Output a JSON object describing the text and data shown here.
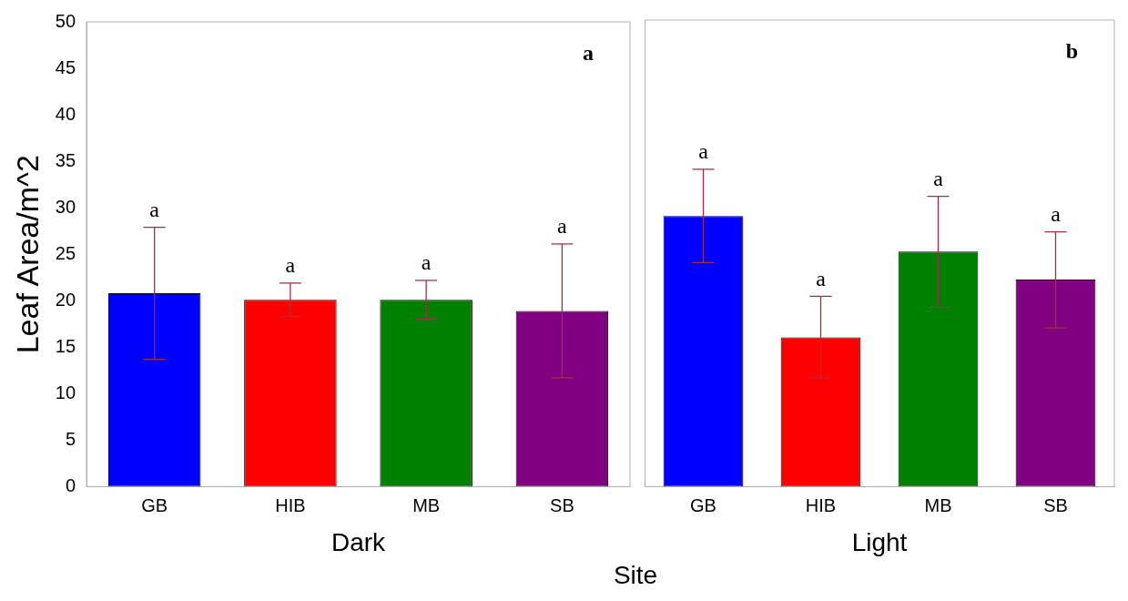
{
  "chart_data": [
    {
      "type": "bar",
      "xlabel": "Dark",
      "ylabel": "Leaf Area/m^2",
      "categories": [
        "GB",
        "HIB",
        "MB",
        "SB"
      ],
      "values": [
        20.8,
        20.1,
        20.1,
        18.9
      ],
      "colors": [
        "#0000ff",
        "#ff0000",
        "#008000",
        "#800080"
      ],
      "errors": [
        [
          13.7,
          27.9
        ],
        [
          18.3,
          21.9
        ],
        [
          18.0,
          22.2
        ],
        [
          11.7,
          26.1
        ]
      ],
      "ylim": [
        0,
        50
      ],
      "yticks": [
        0,
        5,
        10,
        15,
        20,
        25,
        30,
        35,
        40,
        45,
        50
      ],
      "grid": false,
      "annotations": [
        "a",
        {
          "text": "a",
          "x": "GB",
          "y": 27.9
        },
        {
          "text": "a",
          "x": "HIB",
          "y": 21.9
        },
        {
          "text": "a",
          "x": "MB",
          "y": 22.2
        },
        {
          "text": "a",
          "x": "SB",
          "y": 26.1
        }
      ]
    },
    {
      "type": "bar",
      "xlabel": "Light",
      "categories": [
        "GB",
        "HIB",
        "MB",
        "SB"
      ],
      "values": [
        29.0,
        16.0,
        25.2,
        22.2
      ],
      "colors": [
        "#0000ff",
        "#ff0000",
        "#008000",
        "#800080"
      ],
      "errors": [
        [
          24.0,
          34.0
        ],
        [
          11.6,
          20.4
        ],
        [
          19.2,
          31.1
        ],
        [
          17.0,
          27.3
        ]
      ],
      "ylim": [
        0,
        50
      ],
      "yticks": [
        0,
        5,
        10,
        15,
        20,
        25,
        30,
        35,
        40,
        45,
        50
      ],
      "grid": false,
      "tick_labels": "x",
      "annotations": [
        "b",
        "Site",
        {
          "text": "a",
          "x": "GB",
          "y": 34.0
        },
        {
          "text": "a",
          "x": "HIB",
          "y": 20.4
        },
        {
          "text": "a",
          "x": "MB",
          "y": 31.1
        },
        {
          "text": "a",
          "x": "SB",
          "y": 27.3
        }
      ]
    }
  ]
}
